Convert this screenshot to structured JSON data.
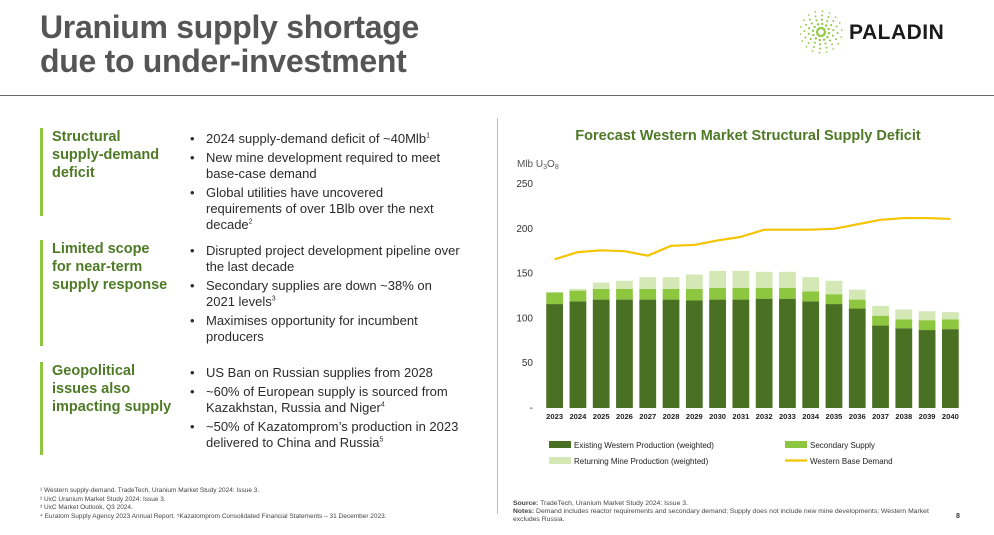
{
  "header": {
    "title_line1": "Uranium supply shortage",
    "title_line2": "due to under-investment",
    "logo_text": "PALADIN"
  },
  "sections": [
    {
      "title": [
        "Structural",
        "supply-demand",
        "deficit"
      ],
      "bullets": [
        {
          "text": "2024 supply-demand deficit of ~40Mlb",
          "sup": "1"
        },
        {
          "text": "New mine development required to meet base-case demand",
          "sup": ""
        },
        {
          "text": "Global utilities have uncovered requirements of over 1Blb over the next decade",
          "sup": "2"
        }
      ]
    },
    {
      "title": [
        "Limited scope",
        "for near-term",
        "supply response"
      ],
      "bullets": [
        {
          "text": "Disrupted project development pipeline over the last decade",
          "sup": ""
        },
        {
          "text": "Secondary supplies are down ~38% on 2021 levels",
          "sup": "3"
        },
        {
          "text": "Maximises opportunity for incumbent producers",
          "sup": ""
        }
      ]
    },
    {
      "title": [
        "Geopolitical",
        "issues also",
        "impacting supply"
      ],
      "bullets": [
        {
          "text": "US Ban on Russian supplies from 2028",
          "sup": ""
        },
        {
          "text": "~60% of European supply is sourced from Kazakhstan, Russia and Niger",
          "sup": "4"
        },
        {
          "text": "~50% of Kazatomprom’s production in 2023 delivered to China and Russia",
          "sup": "5"
        }
      ]
    }
  ],
  "footnotes": [
    "¹  Western supply-demand. TradeTech, Uranium Market Study 2024: Issue 3.",
    "²  UxC Uranium Market Study 2024: Issue 3.",
    "³  UxC  Market Outlook, Q3 2024.",
    "⁴  Euratom Supply Agency 2023 Annual Report. ⁵Kazatomprom Consolidated Financial Statements – 31 December 2023."
  ],
  "source": {
    "source_label": "Source:",
    "source_text": " TradeTech, Uranium Market Study 2024: Issue 3.",
    "notes_label": "Notes:",
    "notes_text": " Demand includes reactor requirements and secondary demand;  Supply does not include new mine developments; Western Market excludes Russia."
  },
  "page_number": "8",
  "colors": {
    "existing": "#4a7023",
    "secondary": "#8dc63f",
    "returning": "#d3e8b4",
    "demand": "#f5c400",
    "section_title": "#4e7a26"
  },
  "chart_data": {
    "type": "bar",
    "title": "Forecast Western Market Structural Supply Deficit",
    "ylabel": "Mlb U3O8",
    "ylabel_main": "Mlb U",
    "ylabel_sub1": "3",
    "ylabel_mid": "O",
    "ylabel_sub2": "8",
    "ylim": [
      0,
      250
    ],
    "yticks": [
      0,
      50,
      100,
      150,
      200,
      250
    ],
    "ytick_labels": [
      "-",
      "50",
      "100",
      "150",
      "200",
      "250"
    ],
    "stacked": true,
    "categories": [
      "2023",
      "2024",
      "2025",
      "2026",
      "2027",
      "2028",
      "2029",
      "2030",
      "2031",
      "2032",
      "2033",
      "2034",
      "2035",
      "2036",
      "2037",
      "2038",
      "2039",
      "2040"
    ],
    "series": [
      {
        "name": "Existing Western Production (weighted)",
        "kind": "bar",
        "values": [
          116,
          119,
          121,
          121,
          121,
          121,
          120,
          121,
          121,
          122,
          122,
          119,
          116,
          111,
          92,
          89,
          87,
          88
        ]
      },
      {
        "name": "Secondary Supply",
        "kind": "bar",
        "values": [
          13,
          12,
          12,
          12,
          12,
          12,
          13,
          13,
          13,
          12,
          12,
          11,
          11,
          10,
          11,
          10,
          11,
          11
        ]
      },
      {
        "name": "Returning Mine Production (weighted)",
        "kind": "bar",
        "values": [
          0,
          2,
          7,
          9,
          13,
          13,
          16,
          19,
          19,
          18,
          18,
          16,
          15,
          11,
          11,
          11,
          10,
          8
        ]
      },
      {
        "name": "Western Base Demand",
        "kind": "line",
        "values": [
          166,
          174,
          176,
          175,
          170,
          181,
          182,
          187,
          191,
          199,
          199,
          199,
          200,
          205,
          210,
          212,
          212,
          211
        ]
      }
    ],
    "legend_order": [
      "Existing Western Production (weighted)",
      "Secondary Supply",
      "Returning Mine Production (weighted)",
      "Western Base Demand"
    ],
    "legend_position": "bottom"
  }
}
